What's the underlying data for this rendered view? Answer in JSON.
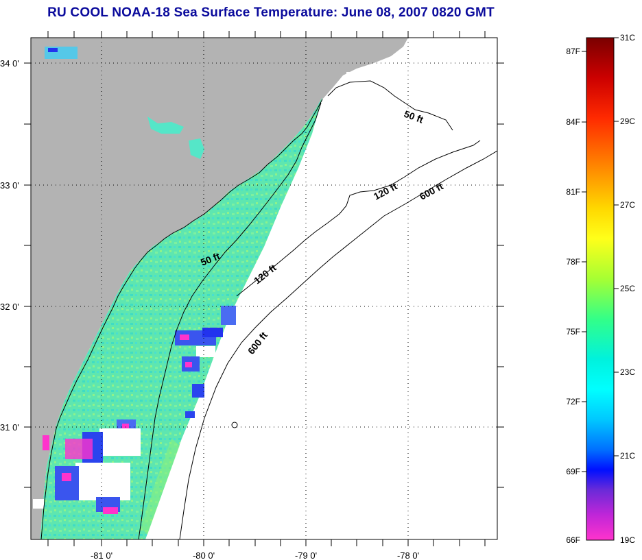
{
  "title": "RU COOL  NOAA-18  Sea Surface Temperature:  June 08, 2007 0820 GMT",
  "colors": {
    "land": "#b3b3b3",
    "water_nodata": "#ffffff",
    "sst_main": "#55e6a8",
    "sst_warm": "#8cf07a",
    "sst_cool": "#2fd6d6",
    "cold_blue": "#2233ee",
    "cold_magenta": "#ff33cc",
    "title": "#0a0a9c"
  },
  "axes": {
    "lon_ticks": [
      "-81 0'",
      "-80 0'",
      "-79 0'",
      "-78 0'"
    ],
    "lat_ticks": [
      "34 0'",
      "33 0'",
      "32 0'",
      "31 0'"
    ]
  },
  "contours": {
    "fifty_ft": "50 ft",
    "one_twenty_ft": "120 ft",
    "six_hundred_ft": "600 ft"
  },
  "colorbar": {
    "f_labels": [
      "87F",
      "84F",
      "81F",
      "78F",
      "75F",
      "72F",
      "69F",
      "66F"
    ],
    "c_labels": [
      "31C",
      "29C",
      "27C",
      "25C",
      "23C",
      "21C",
      "19C"
    ],
    "stops": [
      "#7a0000",
      "#cc0000",
      "#ff2a00",
      "#ff8a00",
      "#ffd800",
      "#ffff1a",
      "#a6ff33",
      "#33ff88",
      "#00f2dd",
      "#00ffff",
      "#00c8ff",
      "#0070ff",
      "#0010ff",
      "#6a2ad8",
      "#c026d8",
      "#ff33cc"
    ]
  }
}
